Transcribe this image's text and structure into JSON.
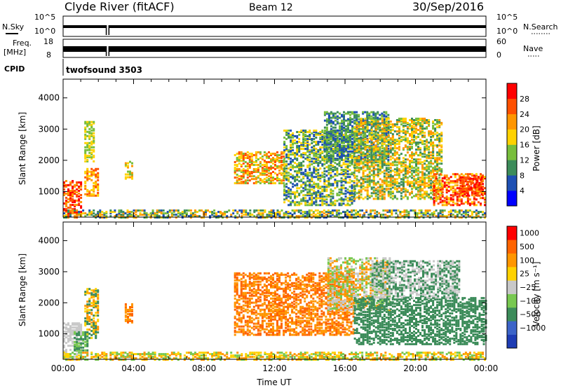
{
  "header": {
    "station": "Clyde River (fitACF)",
    "beam": "Beam 12",
    "date": "30/Sep/2016"
  },
  "status_panels": {
    "nsky_label": "N.Sky",
    "nsearch_label": "N.Search",
    "nsky_ticks": [
      "10^5",
      "10^0"
    ],
    "nsearch_ticks": [
      "10^5",
      "10^0"
    ],
    "freq_label_1": "Freq.",
    "freq_label_2": "[MHz]",
    "freq_ticks": [
      "18",
      "8"
    ],
    "nave_label": "Nave",
    "nave_ticks": [
      "60",
      "0"
    ],
    "cpid_label": "CPID",
    "cpid_text": "twofsound  3503",
    "data_gap": [
      2.45,
      2.6
    ]
  },
  "chart_data": [
    {
      "type": "heatmap",
      "name": "power",
      "ylabel": "Slant Range [km]",
      "ylim": [
        180,
        4600
      ],
      "yticks": [
        "1000",
        "2000",
        "3000",
        "4000"
      ],
      "xlim": [
        0,
        24
      ],
      "colorbar_label": "Power [dB]",
      "colorbar_ticks": [
        "4",
        "8",
        "12",
        "16",
        "20",
        "24",
        "28"
      ],
      "colors": [
        "#0000ff",
        "#1e50b4",
        "#3c8c5a",
        "#78be3c",
        "#ffd200",
        "#ff9600",
        "#ff5000",
        "#ff0000"
      ],
      "regions": [
        {
          "t": [
            0.0,
            1.05
          ],
          "r": [
            200,
            1400
          ],
          "levels": [
            5,
            6,
            7
          ]
        },
        {
          "t": [
            1.2,
            2.0
          ],
          "r": [
            900,
            1800
          ],
          "levels": [
            4,
            5,
            6
          ]
        },
        {
          "t": [
            1.2,
            1.7
          ],
          "r": [
            2000,
            3300
          ],
          "levels": [
            3,
            4
          ]
        },
        {
          "t": [
            3.5,
            3.9
          ],
          "r": [
            1400,
            2000
          ],
          "levels": [
            3,
            4,
            5
          ]
        },
        {
          "t": [
            9.7,
            12.5
          ],
          "r": [
            1300,
            2300
          ],
          "levels": [
            3,
            4,
            5,
            6
          ]
        },
        {
          "t": [
            12.5,
            16.5
          ],
          "r": [
            600,
            3000
          ],
          "levels": [
            1,
            2,
            3,
            4
          ]
        },
        {
          "t": [
            14.8,
            18.5
          ],
          "r": [
            2000,
            3600
          ],
          "levels": [
            1,
            2,
            3
          ]
        },
        {
          "t": [
            16.5,
            21.5
          ],
          "r": [
            800,
            3400
          ],
          "levels": [
            2,
            3,
            4,
            5
          ]
        },
        {
          "t": [
            21.0,
            23.9
          ],
          "r": [
            600,
            1600
          ],
          "levels": [
            4,
            5,
            6,
            7
          ]
        },
        {
          "t": [
            22.5,
            23.8
          ],
          "r": [
            900,
            1500
          ],
          "levels": [
            6,
            7
          ]
        },
        {
          "t": [
            0.0,
            24.0
          ],
          "r": [
            200,
            450
          ],
          "levels": [
            1,
            2,
            3,
            4,
            5
          ]
        }
      ]
    },
    {
      "type": "heatmap",
      "name": "velocity",
      "ylabel": "Slant Range [km]",
      "ylim": [
        180,
        4600
      ],
      "yticks": [
        "1000",
        "2000",
        "3000",
        "4000"
      ],
      "xlim": [
        0,
        24
      ],
      "xlabel": "Time UT",
      "xticks": [
        "00:00",
        "04:00",
        "08:00",
        "12:00",
        "16:00",
        "20:00",
        "00:00"
      ],
      "colorbar_label": "Velocity [m s⁻¹]",
      "colorbar_ticks": [
        "1000",
        "500",
        "100",
        "25",
        "−25",
        "−100",
        "−500",
        "−1000"
      ],
      "colors": [
        "#1e3cb4",
        "#3c64c8",
        "#3c8c5a",
        "#78c850",
        "#c8c8c8",
        "#ffd200",
        "#ff9600",
        "#ff6400",
        "#ff0000"
      ],
      "regions": [
        {
          "t": [
            0.0,
            1.05
          ],
          "r": [
            200,
            1400
          ],
          "levels": [
            4
          ]
        },
        {
          "t": [
            0.6,
            1.4
          ],
          "r": [
            500,
            1100
          ],
          "levels": [
            2,
            3
          ]
        },
        {
          "t": [
            1.2,
            2.0
          ],
          "r": [
            900,
            2500
          ],
          "levels": [
            5,
            6,
            2
          ]
        },
        {
          "t": [
            3.5,
            3.9
          ],
          "r": [
            1400,
            2000
          ],
          "levels": [
            6,
            7
          ]
        },
        {
          "t": [
            9.7,
            16.5
          ],
          "r": [
            1000,
            3000
          ],
          "levels": [
            6,
            7
          ]
        },
        {
          "t": [
            15.0,
            18.5
          ],
          "r": [
            1800,
            3500
          ],
          "levels": [
            4,
            6,
            3
          ]
        },
        {
          "t": [
            16.5,
            24.0
          ],
          "r": [
            700,
            2200
          ],
          "levels": [
            2
          ]
        },
        {
          "t": [
            17.5,
            22.5
          ],
          "r": [
            2200,
            3400
          ],
          "levels": [
            4,
            2
          ]
        },
        {
          "t": [
            0.0,
            24.0
          ],
          "r": [
            200,
            450
          ],
          "levels": [
            5,
            6,
            3
          ]
        }
      ]
    }
  ]
}
